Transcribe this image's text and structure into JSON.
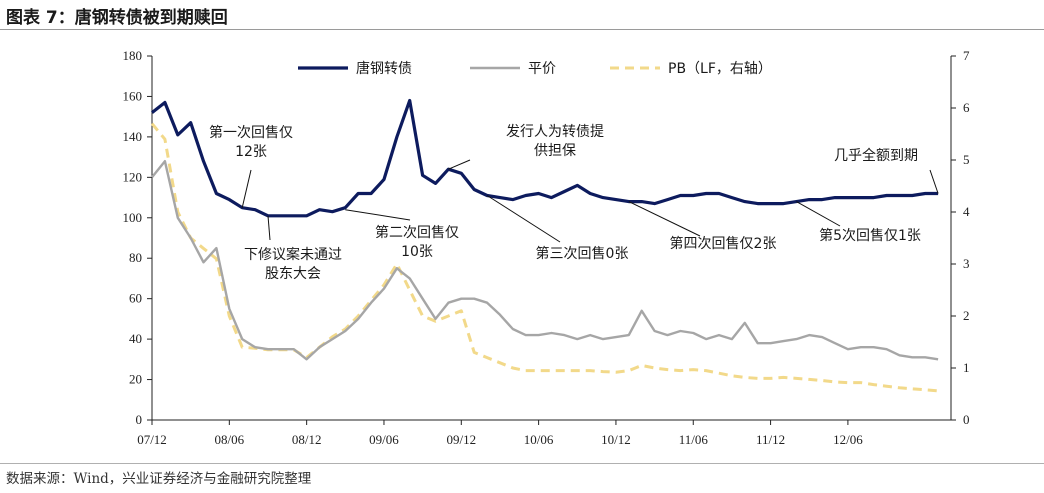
{
  "figure": {
    "title": "图表 7：唐钢转债被到期赎回",
    "source": "数据来源：Wind，兴业证券经济与金融研究院整理"
  },
  "colors": {
    "bond": "#0d1b5e",
    "parity": "#a6a6a6",
    "pb": "#f2d98a",
    "axis": "#222222",
    "text": "#1a1a1a"
  },
  "chart_data": {
    "type": "line",
    "title": "",
    "x_tick_labels": [
      "07/12",
      "08/06",
      "08/12",
      "09/06",
      "09/12",
      "10/06",
      "10/12",
      "11/06",
      "11/12",
      "12/06"
    ],
    "x_tick_dates": [
      "2007-12",
      "2008-06",
      "2008-12",
      "2009-06",
      "2009-12",
      "2010-06",
      "2010-12",
      "2011-06",
      "2011-12",
      "2012-06"
    ],
    "xlim": [
      "2007-12",
      "2013-02"
    ],
    "y_left": {
      "lim": [
        0,
        180
      ],
      "ticks": [
        0,
        20,
        40,
        60,
        80,
        100,
        120,
        140,
        160,
        180
      ]
    },
    "y_right": {
      "lim": [
        0,
        7
      ],
      "ticks": [
        0,
        1,
        2,
        3,
        4,
        5,
        6,
        7
      ]
    },
    "legend": {
      "placement": "top"
    },
    "series": [
      {
        "name": "唐钢转债",
        "axis": "left",
        "style": "solid",
        "color": "#0d1b5e",
        "x": [
          "2007-12",
          "2008-01",
          "2008-02",
          "2008-03",
          "2008-04",
          "2008-05",
          "2008-06",
          "2008-07",
          "2008-08",
          "2008-09",
          "2008-10",
          "2008-11",
          "2008-12",
          "2009-01",
          "2009-02",
          "2009-03",
          "2009-04",
          "2009-05",
          "2009-06",
          "2009-07",
          "2009-08",
          "2009-09",
          "2009-10",
          "2009-11",
          "2009-12",
          "2010-01",
          "2010-02",
          "2010-03",
          "2010-04",
          "2010-05",
          "2010-06",
          "2010-07",
          "2010-08",
          "2010-09",
          "2010-10",
          "2010-11",
          "2010-12",
          "2011-01",
          "2011-02",
          "2011-03",
          "2011-04",
          "2011-05",
          "2011-06",
          "2011-07",
          "2011-08",
          "2011-09",
          "2011-10",
          "2011-11",
          "2011-12",
          "2012-01",
          "2012-02",
          "2012-03",
          "2012-04",
          "2012-05",
          "2012-06",
          "2012-07",
          "2012-08",
          "2012-09",
          "2012-10",
          "2012-11",
          "2012-12",
          "2013-01"
        ],
        "values": [
          152,
          157,
          141,
          147,
          128,
          112,
          109,
          105,
          104,
          101,
          101,
          101,
          101,
          104,
          103,
          105,
          112,
          112,
          119,
          140,
          158,
          121,
          117,
          124,
          122,
          114,
          111,
          110,
          109,
          111,
          112,
          110,
          113,
          116,
          112,
          110,
          109,
          108,
          108,
          107,
          109,
          111,
          111,
          112,
          112,
          110,
          108,
          107,
          107,
          107,
          108,
          109,
          109,
          110,
          110,
          110,
          110,
          111,
          111,
          111,
          112,
          112
        ]
      },
      {
        "name": "平价",
        "axis": "left",
        "style": "solid",
        "color": "#a6a6a6",
        "x": [
          "2007-12",
          "2008-01",
          "2008-02",
          "2008-03",
          "2008-04",
          "2008-05",
          "2008-06",
          "2008-07",
          "2008-08",
          "2008-09",
          "2008-10",
          "2008-11",
          "2008-12",
          "2009-01",
          "2009-02",
          "2009-03",
          "2009-04",
          "2009-05",
          "2009-06",
          "2009-07",
          "2009-08",
          "2009-09",
          "2009-10",
          "2009-11",
          "2009-12",
          "2010-01",
          "2010-02",
          "2010-03",
          "2010-04",
          "2010-05",
          "2010-06",
          "2010-07",
          "2010-08",
          "2010-09",
          "2010-10",
          "2010-11",
          "2010-12",
          "2011-01",
          "2011-02",
          "2011-03",
          "2011-04",
          "2011-05",
          "2011-06",
          "2011-07",
          "2011-08",
          "2011-09",
          "2011-10",
          "2011-11",
          "2011-12",
          "2012-01",
          "2012-02",
          "2012-03",
          "2012-04",
          "2012-05",
          "2012-06",
          "2012-07",
          "2012-08",
          "2012-09",
          "2012-10",
          "2012-11",
          "2012-12",
          "2013-01"
        ],
        "values": [
          120,
          128,
          100,
          90,
          78,
          85,
          55,
          40,
          36,
          35,
          35,
          35,
          30,
          36,
          40,
          44,
          50,
          58,
          65,
          75,
          70,
          60,
          50,
          58,
          60,
          60,
          58,
          52,
          45,
          42,
          42,
          43,
          42,
          40,
          42,
          40,
          41,
          42,
          54,
          44,
          42,
          44,
          43,
          40,
          42,
          40,
          48,
          38,
          38,
          39,
          40,
          42,
          41,
          38,
          35,
          36,
          36,
          35,
          32,
          31,
          31,
          30
        ]
      },
      {
        "name": "PB（LF，右轴）",
        "axis": "right",
        "style": "dashed",
        "color": "#f2d98a",
        "x": [
          "2007-12",
          "2008-01",
          "2008-02",
          "2008-03",
          "2008-04",
          "2008-05",
          "2008-06",
          "2008-07",
          "2008-08",
          "2008-09",
          "2008-10",
          "2008-11",
          "2008-12",
          "2009-01",
          "2009-02",
          "2009-03",
          "2009-04",
          "2009-05",
          "2009-06",
          "2009-07",
          "2009-08",
          "2009-09",
          "2009-10",
          "2009-11",
          "2009-12",
          "2010-01",
          "2010-02",
          "2010-03",
          "2010-04",
          "2010-05",
          "2010-06",
          "2010-07",
          "2010-08",
          "2010-09",
          "2010-10",
          "2010-11",
          "2010-12",
          "2011-01",
          "2011-02",
          "2011-03",
          "2011-04",
          "2011-05",
          "2011-06",
          "2011-07",
          "2011-08",
          "2011-09",
          "2011-10",
          "2011-11",
          "2011-12",
          "2012-01",
          "2012-02",
          "2012-03",
          "2012-04",
          "2012-05",
          "2012-06",
          "2012-07",
          "2012-08",
          "2012-09",
          "2012-10",
          "2012-11",
          "2012-12",
          "2013-01"
        ],
        "values": [
          5.7,
          5.4,
          4.0,
          3.5,
          3.3,
          3.1,
          2.0,
          1.4,
          1.38,
          1.35,
          1.35,
          1.35,
          1.2,
          1.4,
          1.6,
          1.75,
          2.0,
          2.3,
          2.6,
          3.0,
          2.5,
          2.0,
          1.9,
          2.0,
          2.1,
          1.3,
          1.2,
          1.1,
          1.0,
          0.95,
          0.95,
          0.95,
          0.95,
          0.95,
          0.95,
          0.93,
          0.92,
          0.95,
          1.05,
          1.0,
          0.97,
          0.95,
          0.97,
          0.95,
          0.9,
          0.85,
          0.82,
          0.8,
          0.8,
          0.82,
          0.8,
          0.78,
          0.76,
          0.73,
          0.72,
          0.72,
          0.68,
          0.65,
          0.62,
          0.6,
          0.58,
          0.56
        ]
      }
    ],
    "annotations": [
      {
        "lines": [
          "第一次回售仅",
          "12张"
        ],
        "x": "2008-07",
        "y": 105
      },
      {
        "lines": [
          "下修议案未通过",
          "股东大会"
        ],
        "x": "2008-09",
        "y": 101
      },
      {
        "lines": [
          "第二次回售仅",
          "10张"
        ],
        "x": "2009-03",
        "y": 104
      },
      {
        "lines": [
          "发行人为转债提",
          "供担保"
        ],
        "x": "2009-11",
        "y": 124
      },
      {
        "lines": [
          "第三次回售0张"
        ],
        "x": "2010-02",
        "y": 111
      },
      {
        "lines": [
          "第四次回售仅2张"
        ],
        "x": "2011-01",
        "y": 108
      },
      {
        "lines": [
          "第5次回售仅1张"
        ],
        "x": "2012-02",
        "y": 108
      },
      {
        "lines": [
          "几乎全额到期"
        ],
        "x": "2013-01",
        "y": 112
      }
    ]
  }
}
